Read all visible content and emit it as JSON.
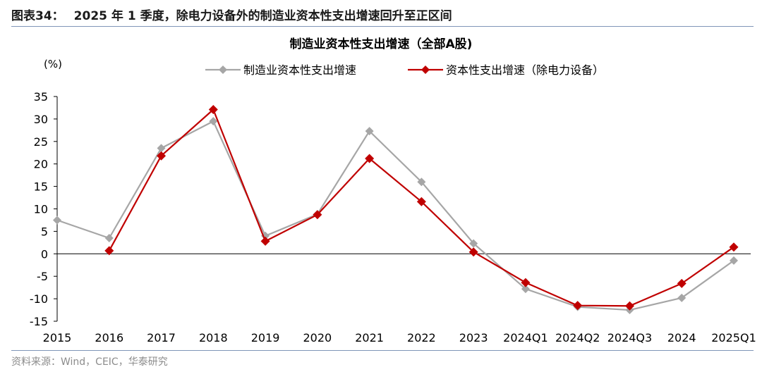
{
  "figure": {
    "number": "图表34：",
    "caption": "2025 年 1 季度，除电力设备外的制造业资本性支出增速回升至正区间",
    "source": "资料来源：Wind，CEIC，华泰研究"
  },
  "colors": {
    "series_1": "#a6a6a6",
    "series_2": "#c00000",
    "rule": "#7f96b8",
    "axis": "#000000"
  },
  "chart_data": {
    "type": "line",
    "title": "制造业资本性支出增速（全部A股)",
    "ylabel": "(%)",
    "xlabel": "",
    "ylim": [
      -15,
      35
    ],
    "yticks": [
      35,
      30,
      25,
      20,
      15,
      10,
      5,
      0,
      -5,
      -10,
      -15
    ],
    "categories": [
      "2015",
      "2016",
      "2017",
      "2018",
      "2019",
      "2020",
      "2021",
      "2022",
      "2023",
      "2024Q1",
      "2024Q2",
      "2024Q3",
      "2024",
      "2025Q1"
    ],
    "grid": false,
    "legend_position": "top",
    "series": [
      {
        "name": "制造业资本性支出增速",
        "marker": "diamond",
        "values": [
          7.5,
          3.5,
          23.5,
          29.5,
          4.0,
          8.8,
          27.3,
          16.0,
          2.3,
          -7.8,
          -11.8,
          -12.5,
          -9.8,
          -1.5
        ]
      },
      {
        "name": "资本性支出增速（除电力设备）",
        "marker": "diamond",
        "values": [
          null,
          0.7,
          21.8,
          32.1,
          2.8,
          8.7,
          21.2,
          11.6,
          0.4,
          -6.4,
          -11.5,
          -11.6,
          -6.6,
          1.5
        ]
      }
    ]
  }
}
